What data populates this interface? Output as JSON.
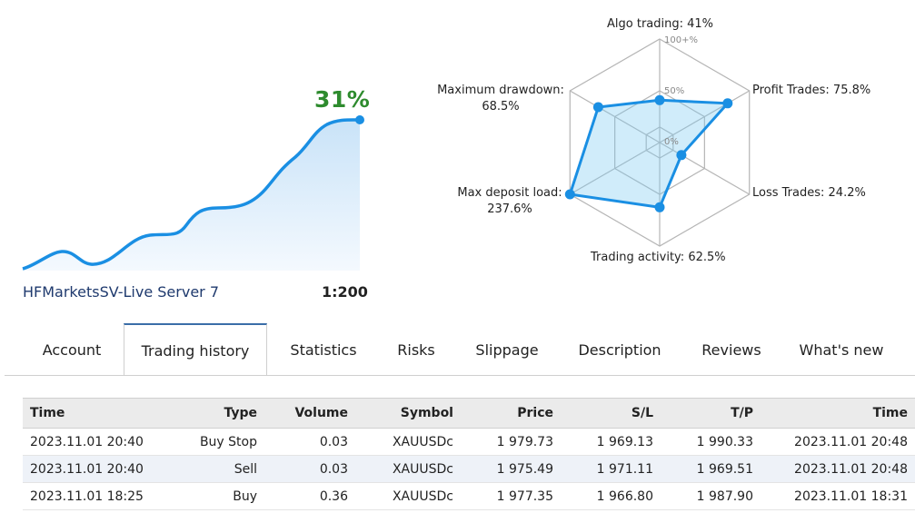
{
  "growth": {
    "percent_label": "31%",
    "server": "HFMarketsSV-Live Server 7",
    "leverage": "1:200",
    "line_color": "#1a8fe3"
  },
  "radar": {
    "ticks": [
      "100+%",
      "50%",
      "0%"
    ],
    "axes": [
      {
        "label": "Algo trading: 41%",
        "value": 41
      },
      {
        "label": "Profit Trades: 75.8%",
        "value": 75.8
      },
      {
        "label": "Loss Trades: 24.2%",
        "value": 24.2
      },
      {
        "label": "Trading activity: 62.5%",
        "value": 62.5
      },
      {
        "label_line1": "Max deposit load:",
        "label_line2": "237.6%",
        "value": 237.6
      },
      {
        "label_line1": "Maximum drawdown:",
        "label_line2": "68.5%",
        "value": 68.5
      }
    ],
    "line_color": "#1a8fe3"
  },
  "tabs": [
    {
      "label": "Account"
    },
    {
      "label": "Trading history",
      "active": true
    },
    {
      "label": "Statistics"
    },
    {
      "label": "Risks"
    },
    {
      "label": "Slippage"
    },
    {
      "label": "Description"
    },
    {
      "label": "Reviews"
    },
    {
      "label": "What's new"
    }
  ],
  "table": {
    "headers": [
      "Time",
      "Type",
      "Volume",
      "Symbol",
      "Price",
      "S/L",
      "T/P",
      "Time"
    ],
    "rows": [
      [
        "2023.11.01 20:40",
        "Buy Stop",
        "0.03",
        "XAUUSDc",
        "1 979.73",
        "1 969.13",
        "1 990.33",
        "2023.11.01 20:48"
      ],
      [
        "2023.11.01 20:40",
        "Sell",
        "0.03",
        "XAUUSDc",
        "1 975.49",
        "1 971.11",
        "1 969.51",
        "2023.11.01 20:48"
      ],
      [
        "2023.11.01 18:25",
        "Buy",
        "0.36",
        "XAUUSDc",
        "1 977.35",
        "1 966.80",
        "1 987.90",
        "2023.11.01 18:31"
      ]
    ]
  }
}
